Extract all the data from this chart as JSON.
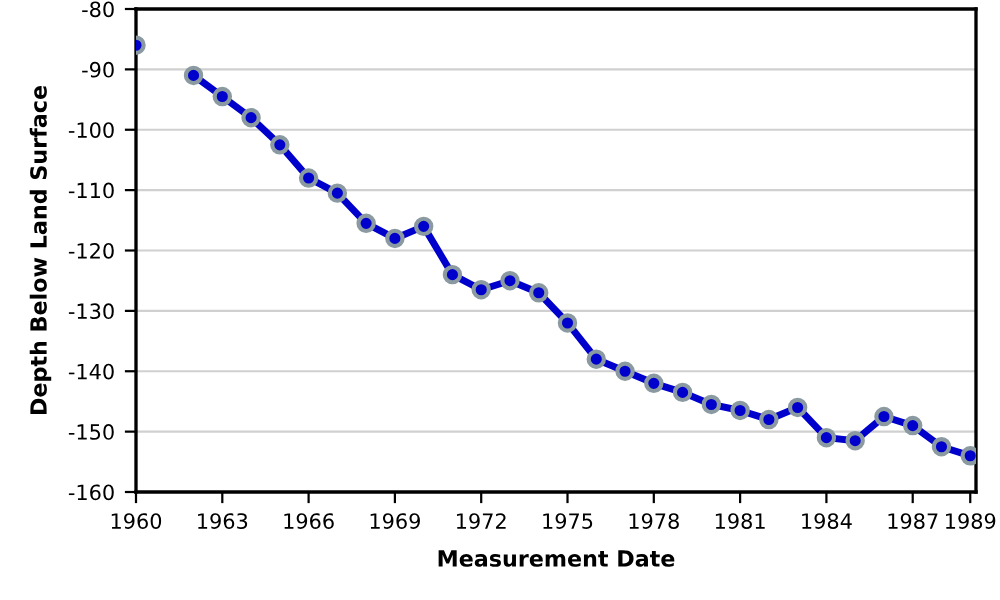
{
  "chart_data": {
    "type": "line",
    "xlabel": "Measurement Date",
    "ylabel": "Depth Below Land Surface",
    "x": [
      1960,
      1961,
      1962,
      1963,
      1964,
      1965,
      1966,
      1967,
      1968,
      1969,
      1970,
      1971,
      1972,
      1973,
      1974,
      1975,
      1976,
      1977,
      1978,
      1979,
      1980,
      1981,
      1982,
      1983,
      1984,
      1985,
      1986,
      1987,
      1988,
      1989
    ],
    "series": [
      {
        "color": "#0000cc",
        "values": [
          -86,
          null,
          -91,
          -94.5,
          -98,
          -102.5,
          -108,
          -110.5,
          -115.5,
          -118,
          -116,
          -124,
          -126.5,
          -125,
          -127,
          -132,
          -138,
          -140,
          -142,
          -143.5,
          -145.5,
          -146.5,
          -148,
          -146,
          -151,
          -151.5,
          -147.5,
          -149,
          -152.5,
          -154
        ]
      }
    ],
    "xlim": [
      1960,
      1989.2
    ],
    "xticks": [
      1960,
      1963,
      1966,
      1969,
      1972,
      1975,
      1978,
      1981,
      1984,
      1987,
      1989
    ],
    "ylim": [
      -160,
      -80
    ],
    "yticks": [
      -160,
      -150,
      -140,
      -130,
      -120,
      -110,
      -100,
      -90,
      -80
    ],
    "grid": "y",
    "marker": "circle",
    "line_style": "solid"
  }
}
